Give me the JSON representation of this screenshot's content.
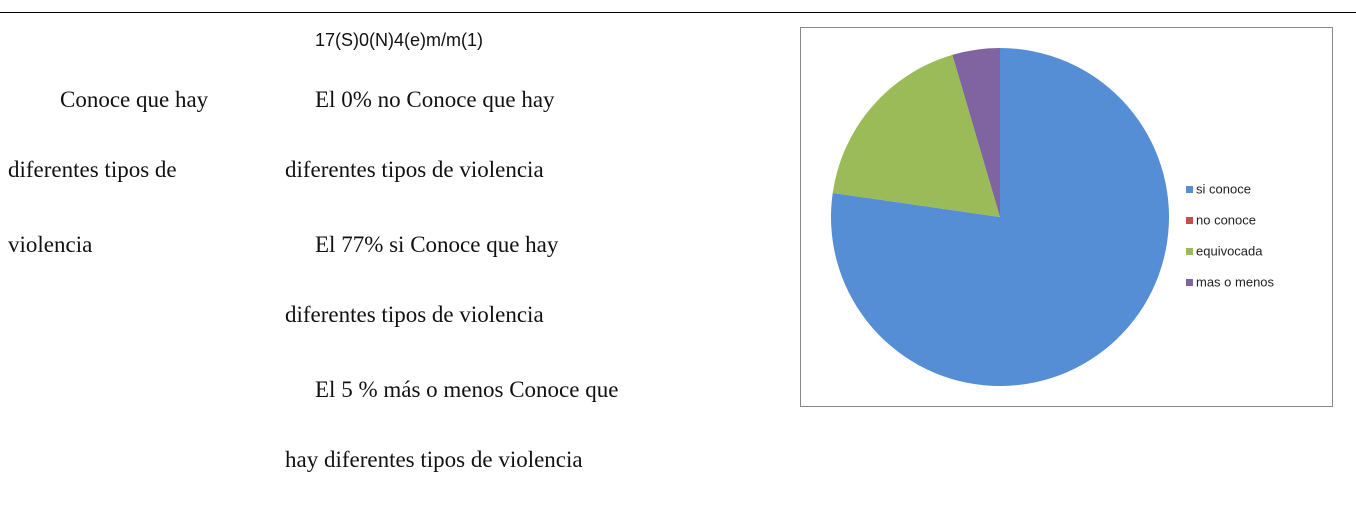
{
  "document": {
    "left_cell": [
      "Conoce que hay",
      "diferentes tipos de",
      "violencia"
    ],
    "counts_line": "17(S)0(N)4(e)m/m(1)",
    "middle_cell": [
      "El 0% no Conoce que hay",
      "diferentes tipos de violencia",
      "El 77% si Conoce que hay",
      "diferentes tipos de violencia",
      "El 5 % más o menos Conoce que",
      "hay diferentes tipos de violencia"
    ]
  },
  "chart_data": {
    "type": "pie",
    "categories": [
      "si conoce",
      "no conoce",
      "equivocada",
      "mas o menos"
    ],
    "values": [
      17,
      0,
      4,
      1
    ],
    "colors": [
      "#558ed5",
      "#c0504d",
      "#9bbb59",
      "#8064a2"
    ],
    "legend": "right"
  }
}
